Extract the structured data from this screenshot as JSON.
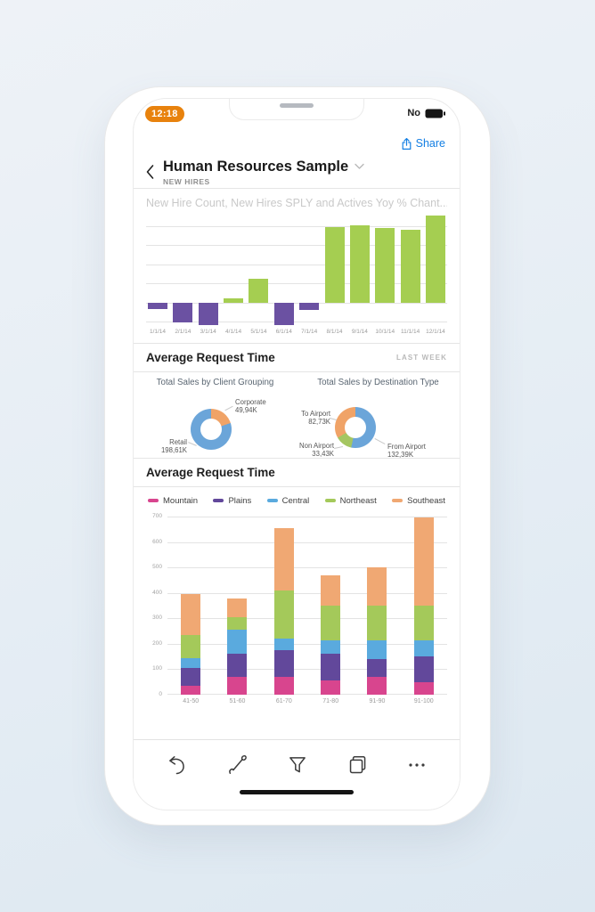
{
  "status_bar": {
    "time": "12:18",
    "right_text": "No"
  },
  "header": {
    "share_label": "Share",
    "title": "Human Resources Sample",
    "subtitle": "NEW HIRES"
  },
  "sections": {
    "request_time_1": {
      "title": "Average Request Time",
      "badge": "LAST WEEK"
    },
    "request_time_2": {
      "title": "Average Request Time"
    }
  },
  "toolbar": {
    "icons": [
      "undo-icon",
      "annotate-pen-icon",
      "filter-funnel-icon",
      "pages-icon",
      "more-ellipsis-icon"
    ]
  },
  "colors": {
    "share_blue": "#147fe3",
    "time_badge_orange": "#e8820d",
    "positive_green": "#a5ce51",
    "negative_purple": "#6b51a2",
    "donut_blue": "#6ba5d9",
    "donut_orange": "#f0a367",
    "donut_green": "#a5c661"
  },
  "chart_data": [
    {
      "id": "new-hires-bar",
      "type": "bar",
      "title": "New Hire Count, New Hires SPLY and Actives Yoy % Chant...",
      "categories": [
        "1/1/14",
        "2/1/14",
        "3/1/14",
        "4/1/14",
        "5/1/14",
        "6/1/14",
        "7/1/14",
        "8/1/14",
        "9/1/14",
        "10/1/14",
        "11/1/14",
        "12/1/14"
      ],
      "values": [
        -0.35,
        -1.05,
        -1.18,
        0.22,
        1.26,
        -1.18,
        -0.38,
        3.95,
        4.06,
        3.91,
        3.82,
        4.54
      ],
      "value_units": "gridline units (y-axis unlabeled)",
      "ylim": [
        -1.2,
        4.6
      ],
      "grid": true,
      "positive_color": "#a5ce51",
      "negative_color": "#6b51a2"
    },
    {
      "id": "client-grouping-donut",
      "type": "pie",
      "title": "Total Sales by Client Grouping",
      "slices": [
        {
          "label": "Corporate",
          "value_display": "49,94K",
          "value": 49.94,
          "color": "#f0a367"
        },
        {
          "label": "Retail",
          "value_display": "198,61K",
          "value": 198.61,
          "color": "#6ba5d9"
        }
      ]
    },
    {
      "id": "destination-type-donut",
      "type": "pie",
      "title": "Total Sales by Destination Type",
      "slices": [
        {
          "label": "From Airport",
          "value_display": "132,39K",
          "value": 132.39,
          "color": "#6ba5d9"
        },
        {
          "label": "Non Airport",
          "value_display": "33,43K",
          "value": 33.43,
          "color": "#a5c661"
        },
        {
          "label": "To Airport",
          "value_display": "82,73K",
          "value": 82.73,
          "color": "#f0a367"
        }
      ]
    },
    {
      "id": "request-time-stacked",
      "type": "bar",
      "stacked": true,
      "categories": [
        "41-50",
        "51-60",
        "61-70",
        "71-80",
        "91-90",
        "91-100"
      ],
      "series": [
        {
          "name": "Mountain",
          "color": "#d8458e",
          "values": [
            35,
            70,
            70,
            55,
            70,
            50
          ]
        },
        {
          "name": "Plains",
          "color": "#62489b",
          "values": [
            70,
            90,
            105,
            105,
            70,
            100
          ]
        },
        {
          "name": "Central",
          "color": "#5aaade",
          "values": [
            40,
            95,
            45,
            55,
            75,
            65
          ]
        },
        {
          "name": "Northeast",
          "color": "#a4c95a",
          "values": [
            90,
            50,
            190,
            135,
            135,
            135
          ]
        },
        {
          "name": "Southeast",
          "color": "#f0a873",
          "values": [
            160,
            75,
            245,
            120,
            150,
            345
          ]
        }
      ],
      "ylim": [
        0,
        700
      ],
      "yticks": [
        0,
        100,
        200,
        300,
        400,
        500,
        600,
        700
      ],
      "grid": true,
      "legend_position": "top"
    }
  ]
}
